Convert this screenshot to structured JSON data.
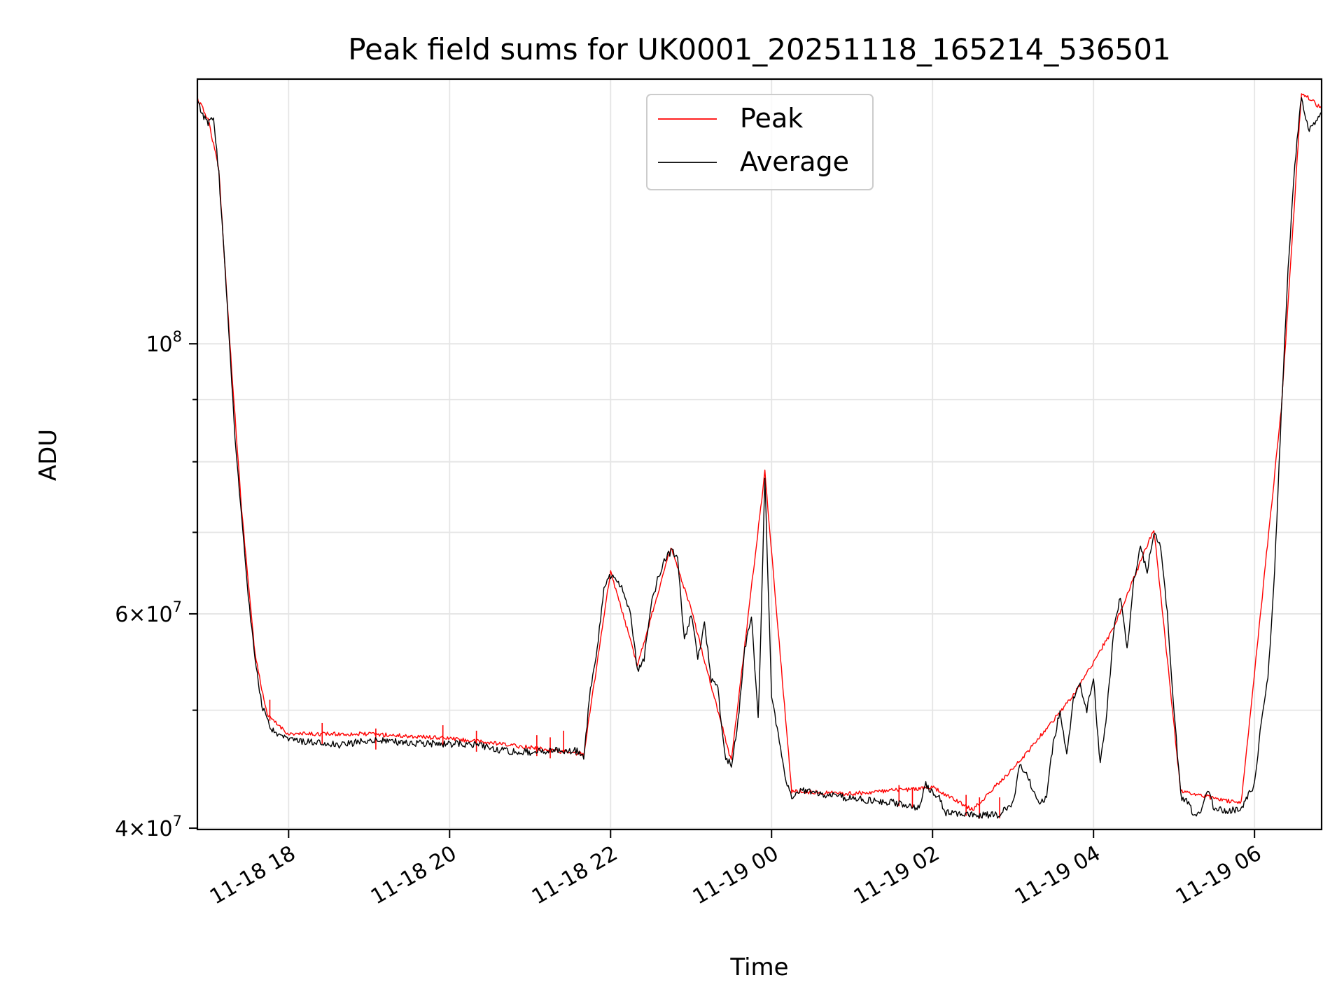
{
  "chart_data": {
    "type": "line",
    "title": "Peak field sums for UK0001_20251118_165214_536501",
    "xlabel": "Time",
    "ylabel": "ADU",
    "x_axis": {
      "type": "time",
      "range": [
        "2025-11-18T16:52",
        "2025-11-19T06:50"
      ],
      "ticks": [
        {
          "t": "2025-11-18T18:00",
          "label": "11-18 18"
        },
        {
          "t": "2025-11-18T20:00",
          "label": "11-18 20"
        },
        {
          "t": "2025-11-18T22:00",
          "label": "11-18 22"
        },
        {
          "t": "2025-11-19T00:00",
          "label": "11-19 00"
        },
        {
          "t": "2025-11-19T02:00",
          "label": "11-19 02"
        },
        {
          "t": "2025-11-19T04:00",
          "label": "11-19 04"
        },
        {
          "t": "2025-11-19T06:00",
          "label": "11-19 06"
        }
      ]
    },
    "y_axis": {
      "scale": "log",
      "range": [
        39900000,
        165000000
      ],
      "major_ticks": [
        {
          "v": 40000000,
          "mant": "4×10",
          "exp": "7"
        },
        {
          "v": 60000000,
          "mant": "6×10",
          "exp": "7"
        },
        {
          "v": 100000000,
          "mant": "10",
          "exp": "8"
        }
      ],
      "minor_ticks": [
        50000000,
        70000000,
        80000000,
        90000000
      ]
    },
    "grid": true,
    "legend": {
      "position": "upper center",
      "entries": [
        {
          "label": "Peak",
          "color": "#ff0000"
        },
        {
          "label": "Average",
          "color": "#000000"
        }
      ]
    },
    "series": [
      {
        "name": "Average",
        "color": "#000000",
        "points": [
          [
            "2025-11-18T16:52",
            158000000
          ],
          [
            "2025-11-18T16:56",
            154000000
          ],
          [
            "2025-11-18T17:00",
            152000000
          ],
          [
            "2025-11-18T17:04",
            153000000
          ],
          [
            "2025-11-18T17:08",
            138000000
          ],
          [
            "2025-11-18T17:12",
            118000000
          ],
          [
            "2025-11-18T17:16",
            100000000
          ],
          [
            "2025-11-18T17:20",
            84000000
          ],
          [
            "2025-11-18T17:25",
            72000000
          ],
          [
            "2025-11-18T17:30",
            62000000
          ],
          [
            "2025-11-18T17:35",
            55000000
          ],
          [
            "2025-11-18T17:40",
            50500000
          ],
          [
            "2025-11-18T17:44",
            49000000
          ],
          [
            "2025-11-18T17:50",
            47700000
          ],
          [
            "2025-11-18T18:00",
            47300000
          ],
          [
            "2025-11-18T18:20",
            47000000
          ],
          [
            "2025-11-18T18:40",
            46800000
          ],
          [
            "2025-11-18T19:00",
            47300000
          ],
          [
            "2025-11-18T19:30",
            47000000
          ],
          [
            "2025-11-18T20:00",
            46900000
          ],
          [
            "2025-11-18T20:20",
            46900000
          ],
          [
            "2025-11-18T20:40",
            46300000
          ],
          [
            "2025-11-18T21:00",
            46200000
          ],
          [
            "2025-11-18T21:20",
            46400000
          ],
          [
            "2025-11-18T21:35",
            46300000
          ],
          [
            "2025-11-18T21:40",
            45700000
          ],
          [
            "2025-11-18T21:45",
            52000000
          ],
          [
            "2025-11-18T21:50",
            56000000
          ],
          [
            "2025-11-18T21:55",
            63000000
          ],
          [
            "2025-11-18T22:00",
            64500000
          ],
          [
            "2025-11-18T22:05",
            64000000
          ],
          [
            "2025-11-18T22:10",
            62500000
          ],
          [
            "2025-11-18T22:15",
            60000000
          ],
          [
            "2025-11-18T22:20",
            54000000
          ],
          [
            "2025-11-18T22:25",
            55000000
          ],
          [
            "2025-11-18T22:30",
            61000000
          ],
          [
            "2025-11-18T22:35",
            64000000
          ],
          [
            "2025-11-18T22:40",
            66500000
          ],
          [
            "2025-11-18T22:45",
            67500000
          ],
          [
            "2025-11-18T22:50",
            67000000
          ],
          [
            "2025-11-18T22:55",
            57000000
          ],
          [
            "2025-11-18T23:00",
            60000000
          ],
          [
            "2025-11-18T23:05",
            55000000
          ],
          [
            "2025-11-18T23:10",
            59000000
          ],
          [
            "2025-11-18T23:15",
            53000000
          ],
          [
            "2025-11-18T23:20",
            52000000
          ],
          [
            "2025-11-18T23:25",
            46000000
          ],
          [
            "2025-11-18T23:30",
            45000000
          ],
          [
            "2025-11-18T23:35",
            49000000
          ],
          [
            "2025-11-18T23:40",
            56000000
          ],
          [
            "2025-11-18T23:45",
            60000000
          ],
          [
            "2025-11-18T23:50",
            49000000
          ],
          [
            "2025-11-18T23:52",
            58000000
          ],
          [
            "2025-11-18T23:55",
            78000000
          ],
          [
            "2025-11-19T00:00",
            51000000
          ],
          [
            "2025-11-19T00:05",
            48000000
          ],
          [
            "2025-11-19T00:10",
            44000000
          ],
          [
            "2025-11-19T00:15",
            42500000
          ],
          [
            "2025-11-19T00:20",
            43000000
          ],
          [
            "2025-11-19T00:30",
            42800000
          ],
          [
            "2025-11-19T01:00",
            42300000
          ],
          [
            "2025-11-19T01:30",
            42000000
          ],
          [
            "2025-11-19T01:50",
            41600000
          ],
          [
            "2025-11-19T01:55",
            43500000
          ],
          [
            "2025-11-19T02:00",
            42800000
          ],
          [
            "2025-11-19T02:05",
            42300000
          ],
          [
            "2025-11-19T02:10",
            41200000
          ],
          [
            "2025-11-19T02:30",
            41000000
          ],
          [
            "2025-11-19T02:50",
            41000000
          ],
          [
            "2025-11-19T03:00",
            42000000
          ],
          [
            "2025-11-19T03:05",
            45000000
          ],
          [
            "2025-11-19T03:10",
            44200000
          ],
          [
            "2025-11-19T03:15",
            43000000
          ],
          [
            "2025-11-19T03:20",
            41800000
          ],
          [
            "2025-11-19T03:25",
            42500000
          ],
          [
            "2025-11-19T03:30",
            47000000
          ],
          [
            "2025-11-19T03:35",
            50000000
          ],
          [
            "2025-11-19T03:40",
            46000000
          ],
          [
            "2025-11-19T03:45",
            51000000
          ],
          [
            "2025-11-19T03:50",
            52500000
          ],
          [
            "2025-11-19T03:55",
            50000000
          ],
          [
            "2025-11-19T04:00",
            53000000
          ],
          [
            "2025-11-19T04:05",
            45000000
          ],
          [
            "2025-11-19T04:10",
            50000000
          ],
          [
            "2025-11-19T04:15",
            58000000
          ],
          [
            "2025-11-19T04:20",
            62000000
          ],
          [
            "2025-11-19T04:25",
            56000000
          ],
          [
            "2025-11-19T04:30",
            64000000
          ],
          [
            "2025-11-19T04:35",
            68000000
          ],
          [
            "2025-11-19T04:40",
            65000000
          ],
          [
            "2025-11-19T04:45",
            70000000
          ],
          [
            "2025-11-19T04:50",
            68000000
          ],
          [
            "2025-11-19T04:55",
            60000000
          ],
          [
            "2025-11-19T05:00",
            50000000
          ],
          [
            "2025-11-19T05:05",
            42500000
          ],
          [
            "2025-11-19T05:10",
            42000000
          ],
          [
            "2025-11-19T05:15",
            41000000
          ],
          [
            "2025-11-19T05:20",
            41200000
          ],
          [
            "2025-11-19T05:25",
            43000000
          ],
          [
            "2025-11-19T05:30",
            41500000
          ],
          [
            "2025-11-19T05:40",
            41300000
          ],
          [
            "2025-11-19T05:50",
            41500000
          ],
          [
            "2025-11-19T06:00",
            43500000
          ],
          [
            "2025-11-19T06:05",
            49000000
          ],
          [
            "2025-11-19T06:10",
            53000000
          ],
          [
            "2025-11-19T06:15",
            65000000
          ],
          [
            "2025-11-19T06:20",
            88000000
          ],
          [
            "2025-11-19T06:25",
            115000000
          ],
          [
            "2025-11-19T06:30",
            140000000
          ],
          [
            "2025-11-19T06:35",
            160000000
          ],
          [
            "2025-11-19T06:40",
            150000000
          ],
          [
            "2025-11-19T06:45",
            152000000
          ],
          [
            "2025-11-19T06:50",
            155000000
          ]
        ]
      },
      {
        "name": "Peak",
        "color": "#ff0000",
        "points": [
          [
            "2025-11-18T16:52",
            159000000
          ],
          [
            "2025-11-18T17:00",
            153000000
          ],
          [
            "2025-11-18T17:08",
            139000000
          ],
          [
            "2025-11-18T17:16",
            101000000
          ],
          [
            "2025-11-18T17:25",
            73000000
          ],
          [
            "2025-11-18T17:35",
            55500000
          ],
          [
            "2025-11-18T17:44",
            49500000
          ],
          [
            "2025-11-18T18:00",
            47800000
          ],
          [
            "2025-11-18T19:00",
            47800000
          ],
          [
            "2025-11-18T20:00",
            47400000
          ],
          [
            "2025-11-18T21:00",
            46600000
          ],
          [
            "2025-11-18T21:40",
            46000000
          ],
          [
            "2025-11-18T22:00",
            65000000
          ],
          [
            "2025-11-18T22:20",
            54500000
          ],
          [
            "2025-11-18T22:45",
            68000000
          ],
          [
            "2025-11-18T23:00",
            60500000
          ],
          [
            "2025-11-18T23:30",
            45400000
          ],
          [
            "2025-11-18T23:55",
            78500000
          ],
          [
            "2025-11-19T00:15",
            42900000
          ],
          [
            "2025-11-19T01:00",
            42700000
          ],
          [
            "2025-11-19T02:00",
            43200000
          ],
          [
            "2025-11-19T02:30",
            41400000
          ],
          [
            "2025-11-19T03:05",
            45400000
          ],
          [
            "2025-11-19T03:45",
            51400000
          ],
          [
            "2025-11-19T04:15",
            58400000
          ],
          [
            "2025-11-19T04:45",
            70500000
          ],
          [
            "2025-11-19T05:05",
            42900000
          ],
          [
            "2025-11-19T05:50",
            41900000
          ],
          [
            "2025-11-19T06:20",
            88500000
          ],
          [
            "2025-11-19T06:35",
            161000000
          ],
          [
            "2025-11-19T06:50",
            156000000
          ]
        ],
        "spikes": [
          [
            "2025-11-18T17:46",
            51000000
          ],
          [
            "2025-11-18T18:25",
            48800000
          ],
          [
            "2025-11-18T19:05",
            48300000
          ],
          [
            "2025-11-18T19:55",
            48600000
          ],
          [
            "2025-11-18T20:20",
            48100000
          ],
          [
            "2025-11-18T21:05",
            47700000
          ],
          [
            "2025-11-18T21:15",
            47500000
          ],
          [
            "2025-11-18T21:25",
            48100000
          ],
          [
            "2025-11-19T01:35",
            43400000
          ],
          [
            "2025-11-19T01:45",
            43200000
          ],
          [
            "2025-11-19T02:25",
            42600000
          ],
          [
            "2025-11-19T02:35",
            42400000
          ],
          [
            "2025-11-19T02:50",
            42400000
          ]
        ]
      }
    ]
  }
}
